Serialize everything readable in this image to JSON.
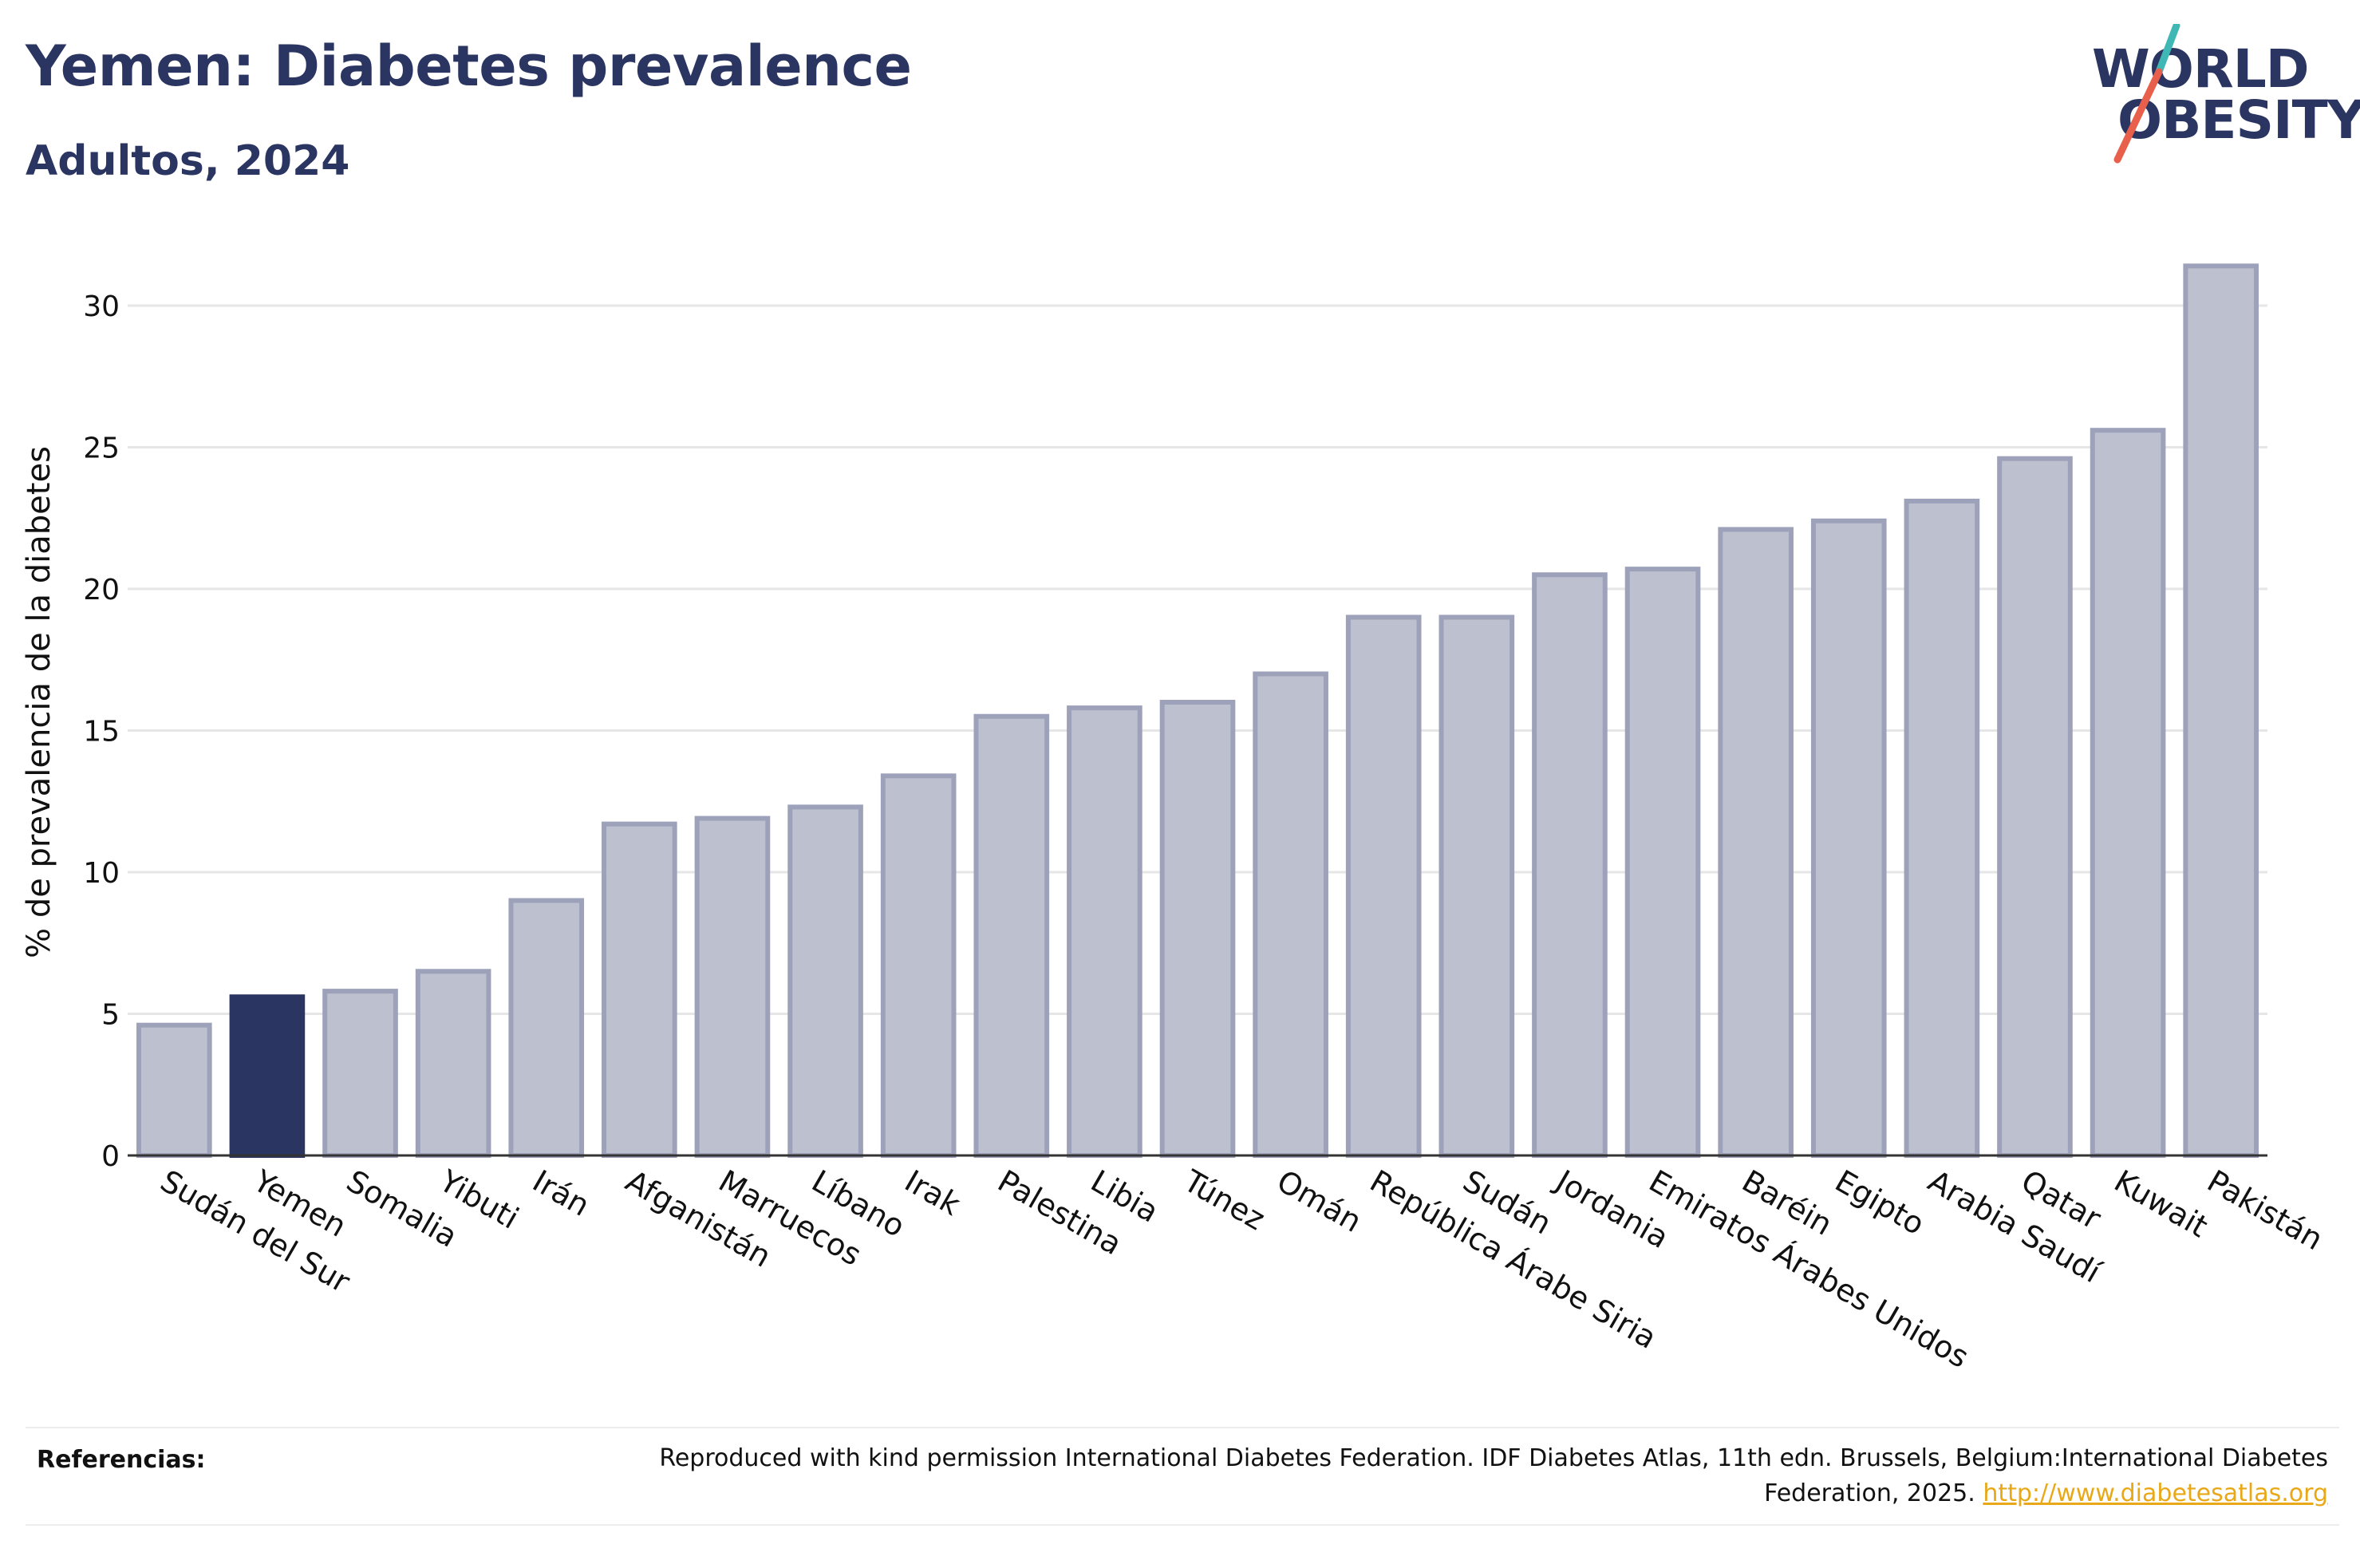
{
  "header": {
    "title": "Yemen: Diabetes prevalence",
    "subtitle": "Adultos, 2024"
  },
  "logo": {
    "line1": "WORLD",
    "line2": "OBESITY",
    "slash_colors": [
      "#3fb8b5",
      "#e8604c"
    ]
  },
  "colors": {
    "highlight": "#2b3561",
    "bar_fill": "#bdc0cf",
    "bar_stroke": "#9da2ba",
    "grid": "#e6e6e6",
    "link": "#e8a818"
  },
  "chart_data": {
    "type": "bar",
    "ylabel": "% de prevalencia de la diabetes",
    "xlabel": "",
    "ylim": [
      0,
      32
    ],
    "yticks": [
      0,
      5,
      10,
      15,
      20,
      25,
      30
    ],
    "grid": true,
    "highlight_category": "Yemen",
    "categories": [
      "Sudán del Sur",
      "Yemen",
      "Somalia",
      "Yibuti",
      "Irán",
      "Afganistán",
      "Marruecos",
      "Líbano",
      "Irak",
      "Palestina",
      "Libia",
      "Túnez",
      "Omán",
      "República Árabe Siria",
      "Sudán",
      "Jordania",
      "Emiratos Árabes Unidos",
      "Baréin",
      "Egipto",
      "Arabia Saudí",
      "Qatar",
      "Kuwait",
      "Pakistán"
    ],
    "values": [
      4.6,
      5.6,
      5.8,
      6.5,
      9.0,
      11.7,
      11.9,
      12.3,
      13.4,
      15.5,
      15.8,
      16.0,
      17.0,
      19.0,
      19.0,
      20.5,
      20.7,
      22.1,
      22.4,
      23.1,
      24.6,
      25.6,
      31.4
    ]
  },
  "references": {
    "label": "Referencias:",
    "text": "Reproduced with kind permission International Diabetes Federation. IDF Diabetes Atlas, 11th edn. Brussels, Belgium:International Diabetes Federation, 2025.",
    "link": "http://www.diabetesatlas.org"
  }
}
